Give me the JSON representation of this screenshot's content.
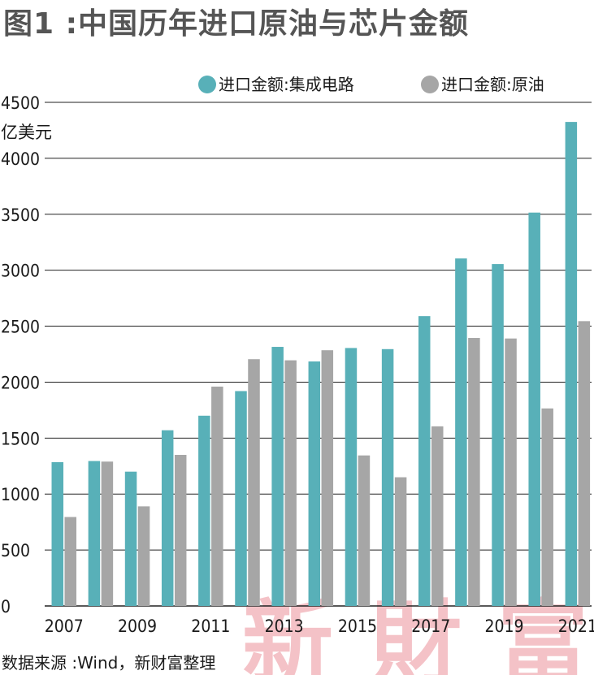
{
  "title": "图1 :中国历年进口原油与芯片金额",
  "source_note": "数据来源 :Wind，新财富整理",
  "watermark": "新財富",
  "colors": {
    "circuit": "#58b0b8",
    "oil": "#a6a6a6",
    "grid": "#222222",
    "title": "#555555",
    "watermark": "#f4c2c7"
  },
  "chart_data": {
    "type": "bar",
    "title": "图1 :中国历年进口原油与芯片金额",
    "ylabel": "亿美元",
    "xlabel": "",
    "ylim": [
      0,
      4500
    ],
    "yticks": [
      0,
      500,
      1000,
      1500,
      2000,
      2500,
      3000,
      3500,
      4000,
      4500
    ],
    "categories": [
      "2007",
      "2008",
      "2009",
      "2010",
      "2011",
      "2012",
      "2013",
      "2014",
      "2015",
      "2016",
      "2017",
      "2018",
      "2019",
      "2020",
      "2021"
    ],
    "x_tick_labels": [
      "2007",
      "2009",
      "2011",
      "2013",
      "2015",
      "2017",
      "2019",
      "2021"
    ],
    "grid": true,
    "legend_position": "top-right",
    "series": [
      {
        "name": "进口金额:集成电路",
        "color": "#58b0b8",
        "values": [
          1285,
          1295,
          1200,
          1570,
          1700,
          1920,
          2315,
          2185,
          2305,
          2295,
          2590,
          3105,
          3055,
          3515,
          4325
        ]
      },
      {
        "name": "进口金额:原油",
        "color": "#a6a6a6",
        "values": [
          795,
          1290,
          890,
          1350,
          1960,
          2205,
          2195,
          2285,
          1345,
          1150,
          1605,
          2395,
          2390,
          1765,
          2545
        ]
      }
    ]
  }
}
